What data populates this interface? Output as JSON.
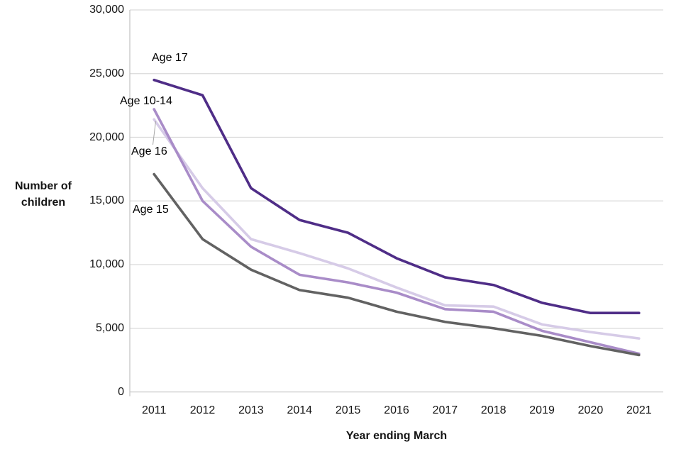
{
  "chart_data": {
    "type": "line",
    "title": "",
    "xlabel": "Year ending March",
    "ylabel": "Number of children",
    "ylabel_lines": [
      "Number of",
      "children"
    ],
    "categories": [
      "2011",
      "2012",
      "2013",
      "2014",
      "2015",
      "2016",
      "2017",
      "2018",
      "2019",
      "2020",
      "2021"
    ],
    "ylim": [
      0,
      30000
    ],
    "y_ticks": [
      {
        "value": 0,
        "label": "0"
      },
      {
        "value": 5000,
        "label": "5,000"
      },
      {
        "value": 10000,
        "label": "10,000"
      },
      {
        "value": 15000,
        "label": "15,000"
      },
      {
        "value": 20000,
        "label": "20,000"
      },
      {
        "value": 25000,
        "label": "25,000"
      },
      {
        "value": 30000,
        "label": "30,000"
      }
    ],
    "grid": "horizontal",
    "legend_position": "inline-labels-near-line-start",
    "series": [
      {
        "name": "Age 16",
        "color": "#d6cbe7",
        "values": [
          21400,
          16000,
          12000,
          10900,
          9700,
          8200,
          6800,
          6700,
          5300,
          4700,
          4200
        ]
      },
      {
        "name": "Age 10-14",
        "color": "#a98cc8",
        "values": [
          22200,
          15000,
          11400,
          9200,
          8600,
          7800,
          6500,
          6300,
          4800,
          3900,
          3000
        ]
      },
      {
        "name": "Age 15",
        "color": "#626262",
        "values": [
          17100,
          12000,
          9600,
          8000,
          7400,
          6300,
          5500,
          5000,
          4400,
          3600,
          2900
        ]
      },
      {
        "name": "Age 17",
        "color": "#4f2d87",
        "values": [
          24500,
          23300,
          16000,
          13500,
          12500,
          10500,
          9000,
          8400,
          7000,
          6200,
          6200
        ]
      }
    ],
    "series_label_order": {
      "age17": "Age 17",
      "age1014": "Age 10-14",
      "age16": "Age 16",
      "age15": "Age 15"
    },
    "colors": {
      "gridline": "#d9d9d9",
      "axis_line": "#c6c6c6",
      "leader_line": "#a6a6a6",
      "text": "#151515"
    }
  }
}
